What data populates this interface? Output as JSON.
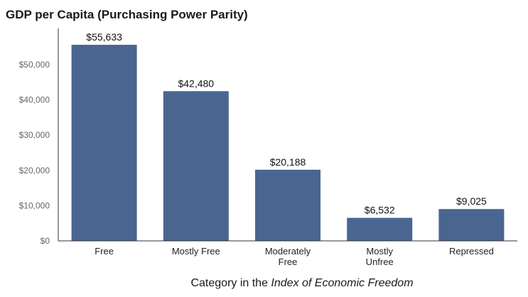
{
  "chart_data": {
    "type": "bar",
    "title": "GDP per Capita (Purchasing Power Parity)",
    "xlabel_prefix": "Category in the ",
    "xlabel_emphasis": "Index of Economic Freedom",
    "ylabel": "",
    "categories": [
      [
        "Free"
      ],
      [
        "Mostly Free"
      ],
      [
        "Moderately",
        "Free"
      ],
      [
        "Mostly",
        "Unfree"
      ],
      [
        "Repressed"
      ]
    ],
    "values": [
      55633,
      42480,
      20188,
      6532,
      9025
    ],
    "value_labels": [
      "$55,633",
      "$42,480",
      "$20,188",
      "$6,532",
      "$9,025"
    ],
    "yticks": [
      0,
      10000,
      20000,
      30000,
      40000,
      50000
    ],
    "ytick_labels": [
      "$0",
      "$10,000",
      "$20,000",
      "$30,000",
      "$40,000",
      "$50,000"
    ],
    "ylim": [
      0,
      60000
    ],
    "grid": false,
    "legend": "none",
    "bar_color": "#4a6590",
    "axis_color": "#333333"
  }
}
